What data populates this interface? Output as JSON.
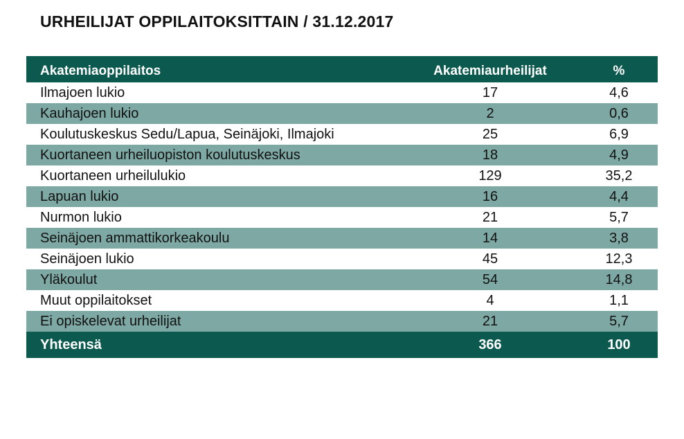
{
  "title": "URHEILIJAT OPPILAITOKSITTAIN / 31.12.2017",
  "colors": {
    "header_bg": "#0c5a4f",
    "shade_bg": "#7ea8a3",
    "header_text": "#ffffff"
  },
  "table": {
    "headers": [
      "Akatemiaoppilaitos",
      "Akatemiaurheilijat",
      "%"
    ],
    "rows": [
      {
        "name": "Ilmajoen lukio",
        "count": "17",
        "pct": "4,6"
      },
      {
        "name": "Kauhajoen lukio",
        "count": "2",
        "pct": "0,6"
      },
      {
        "name": "Koulutuskeskus Sedu/Lapua, Seinäjoki, Ilmajoki",
        "count": "25",
        "pct": "6,9"
      },
      {
        "name": "Kuortaneen urheiluopiston koulutuskeskus",
        "count": "18",
        "pct": "4,9"
      },
      {
        "name": "Kuortaneen urheilulukio",
        "count": "129",
        "pct": "35,2"
      },
      {
        "name": "Lapuan lukio",
        "count": "16",
        "pct": "4,4"
      },
      {
        "name": "Nurmon lukio",
        "count": "21",
        "pct": "5,7"
      },
      {
        "name": "Seinäjoen ammattikorkeakoulu",
        "count": "14",
        "pct": "3,8"
      },
      {
        "name": "Seinäjoen lukio",
        "count": "45",
        "pct": "12,3"
      },
      {
        "name": "Yläkoulut",
        "count": "54",
        "pct": "14,8"
      },
      {
        "name": "Muut oppilaitokset",
        "count": "4",
        "pct": "1,1"
      },
      {
        "name": "Ei opiskelevat urheilijat",
        "count": "21",
        "pct": "5,7"
      }
    ],
    "total": {
      "name": "Yhteensä",
      "count": "366",
      "pct": "100"
    }
  }
}
